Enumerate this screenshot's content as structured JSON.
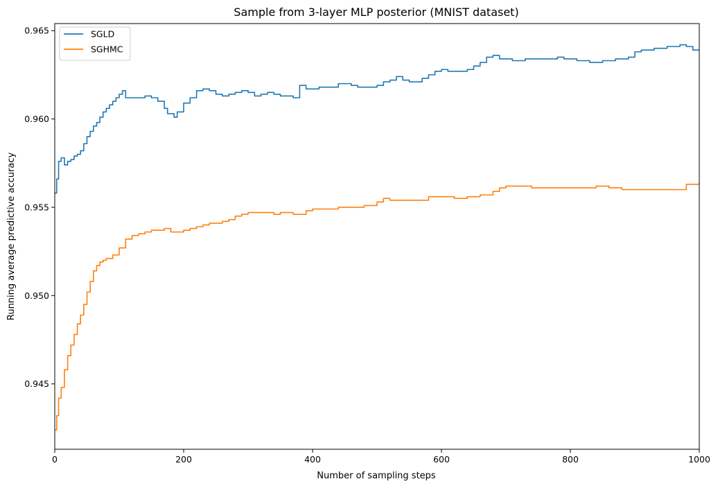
{
  "chart_data": {
    "type": "line",
    "title": "Sample from 3-layer MLP posterior (MNIST dataset)",
    "xlabel": "Number of sampling steps",
    "ylabel": "Running average predictive accuracy",
    "xlim": [
      0,
      1000
    ],
    "ylim": [
      0.9413,
      0.9654
    ],
    "grid": false,
    "legend_position": "top-left",
    "x_ticks": [
      0,
      200,
      400,
      600,
      800,
      1000
    ],
    "x_tick_labels": [
      "0",
      "200",
      "400",
      "600",
      "800",
      "1000"
    ],
    "y_ticks": [
      0.945,
      0.95,
      0.955,
      0.96,
      0.965
    ],
    "y_tick_labels": [
      "0.945",
      "0.950",
      "0.955",
      "0.960",
      "0.965"
    ],
    "series": [
      {
        "name": "SGLD",
        "color": "#1f77b4",
        "x": [
          0,
          3,
          6,
          10,
          15,
          20,
          25,
          30,
          35,
          40,
          45,
          50,
          55,
          60,
          65,
          70,
          75,
          80,
          85,
          90,
          95,
          100,
          105,
          110,
          120,
          130,
          140,
          150,
          160,
          170,
          175,
          180,
          185,
          190,
          200,
          210,
          220,
          230,
          240,
          250,
          260,
          270,
          280,
          290,
          300,
          310,
          320,
          330,
          340,
          350,
          360,
          370,
          380,
          390,
          400,
          410,
          420,
          430,
          440,
          450,
          460,
          470,
          480,
          490,
          500,
          510,
          520,
          530,
          540,
          550,
          560,
          570,
          580,
          590,
          600,
          610,
          620,
          630,
          640,
          650,
          660,
          670,
          680,
          690,
          700,
          710,
          720,
          730,
          740,
          750,
          760,
          770,
          780,
          790,
          800,
          810,
          820,
          830,
          840,
          850,
          860,
          870,
          880,
          890,
          900,
          910,
          920,
          930,
          940,
          950,
          960,
          970,
          980,
          990,
          1000
        ],
        "values": [
          0.9558,
          0.9566,
          0.9576,
          0.9578,
          0.9574,
          0.9576,
          0.9577,
          0.9579,
          0.958,
          0.9582,
          0.9586,
          0.959,
          0.9593,
          0.9596,
          0.9598,
          0.9601,
          0.9604,
          0.9606,
          0.9608,
          0.961,
          0.9612,
          0.9614,
          0.9616,
          0.9612,
          0.9612,
          0.9612,
          0.9613,
          0.9612,
          0.961,
          0.9606,
          0.9603,
          0.9603,
          0.9601,
          0.9604,
          0.9609,
          0.9612,
          0.9616,
          0.9617,
          0.9616,
          0.9614,
          0.9613,
          0.9614,
          0.9615,
          0.9616,
          0.9615,
          0.9613,
          0.9614,
          0.9615,
          0.9614,
          0.9613,
          0.9613,
          0.9612,
          0.9619,
          0.9617,
          0.9617,
          0.9618,
          0.9618,
          0.9618,
          0.962,
          0.962,
          0.9619,
          0.9618,
          0.9618,
          0.9618,
          0.9619,
          0.9621,
          0.9622,
          0.9624,
          0.9622,
          0.9621,
          0.9621,
          0.9623,
          0.9625,
          0.9627,
          0.9628,
          0.9627,
          0.9627,
          0.9627,
          0.9628,
          0.963,
          0.9632,
          0.9635,
          0.9636,
          0.9634,
          0.9634,
          0.9633,
          0.9633,
          0.9634,
          0.9634,
          0.9634,
          0.9634,
          0.9634,
          0.9635,
          0.9634,
          0.9634,
          0.9633,
          0.9633,
          0.9632,
          0.9632,
          0.9633,
          0.9633,
          0.9634,
          0.9634,
          0.9635,
          0.9638,
          0.9639,
          0.9639,
          0.964,
          0.964,
          0.9641,
          0.9641,
          0.9642,
          0.9641,
          0.9639,
          0.9639
        ]
      },
      {
        "name": "SGHMC",
        "color": "#ff7f0e",
        "x": [
          0,
          3,
          6,
          10,
          15,
          20,
          25,
          30,
          35,
          40,
          45,
          50,
          55,
          60,
          65,
          70,
          75,
          80,
          90,
          100,
          110,
          120,
          130,
          140,
          150,
          160,
          170,
          180,
          190,
          200,
          210,
          220,
          230,
          240,
          250,
          260,
          270,
          280,
          290,
          300,
          310,
          320,
          330,
          340,
          350,
          360,
          370,
          380,
          390,
          400,
          420,
          440,
          460,
          480,
          500,
          510,
          520,
          540,
          560,
          580,
          600,
          620,
          640,
          660,
          680,
          690,
          700,
          720,
          740,
          760,
          780,
          800,
          820,
          840,
          860,
          880,
          900,
          920,
          940,
          960,
          980,
          1000
        ],
        "values": [
          0.9424,
          0.9432,
          0.9442,
          0.9448,
          0.9458,
          0.9466,
          0.9472,
          0.9478,
          0.9484,
          0.9489,
          0.9495,
          0.9502,
          0.9508,
          0.9514,
          0.9517,
          0.9519,
          0.952,
          0.9521,
          0.9523,
          0.9527,
          0.9532,
          0.9534,
          0.9535,
          0.9536,
          0.9537,
          0.9537,
          0.9538,
          0.9536,
          0.9536,
          0.9537,
          0.9538,
          0.9539,
          0.954,
          0.9541,
          0.9541,
          0.9542,
          0.9543,
          0.9545,
          0.9546,
          0.9547,
          0.9547,
          0.9547,
          0.9547,
          0.9546,
          0.9547,
          0.9547,
          0.9546,
          0.9546,
          0.9548,
          0.9549,
          0.9549,
          0.955,
          0.955,
          0.9551,
          0.9553,
          0.9555,
          0.9554,
          0.9554,
          0.9554,
          0.9556,
          0.9556,
          0.9555,
          0.9556,
          0.9557,
          0.9559,
          0.9561,
          0.9562,
          0.9562,
          0.9561,
          0.9561,
          0.9561,
          0.9561,
          0.9561,
          0.9562,
          0.9561,
          0.956,
          0.956,
          0.956,
          0.956,
          0.956,
          0.9563,
          0.9564
        ]
      }
    ]
  }
}
